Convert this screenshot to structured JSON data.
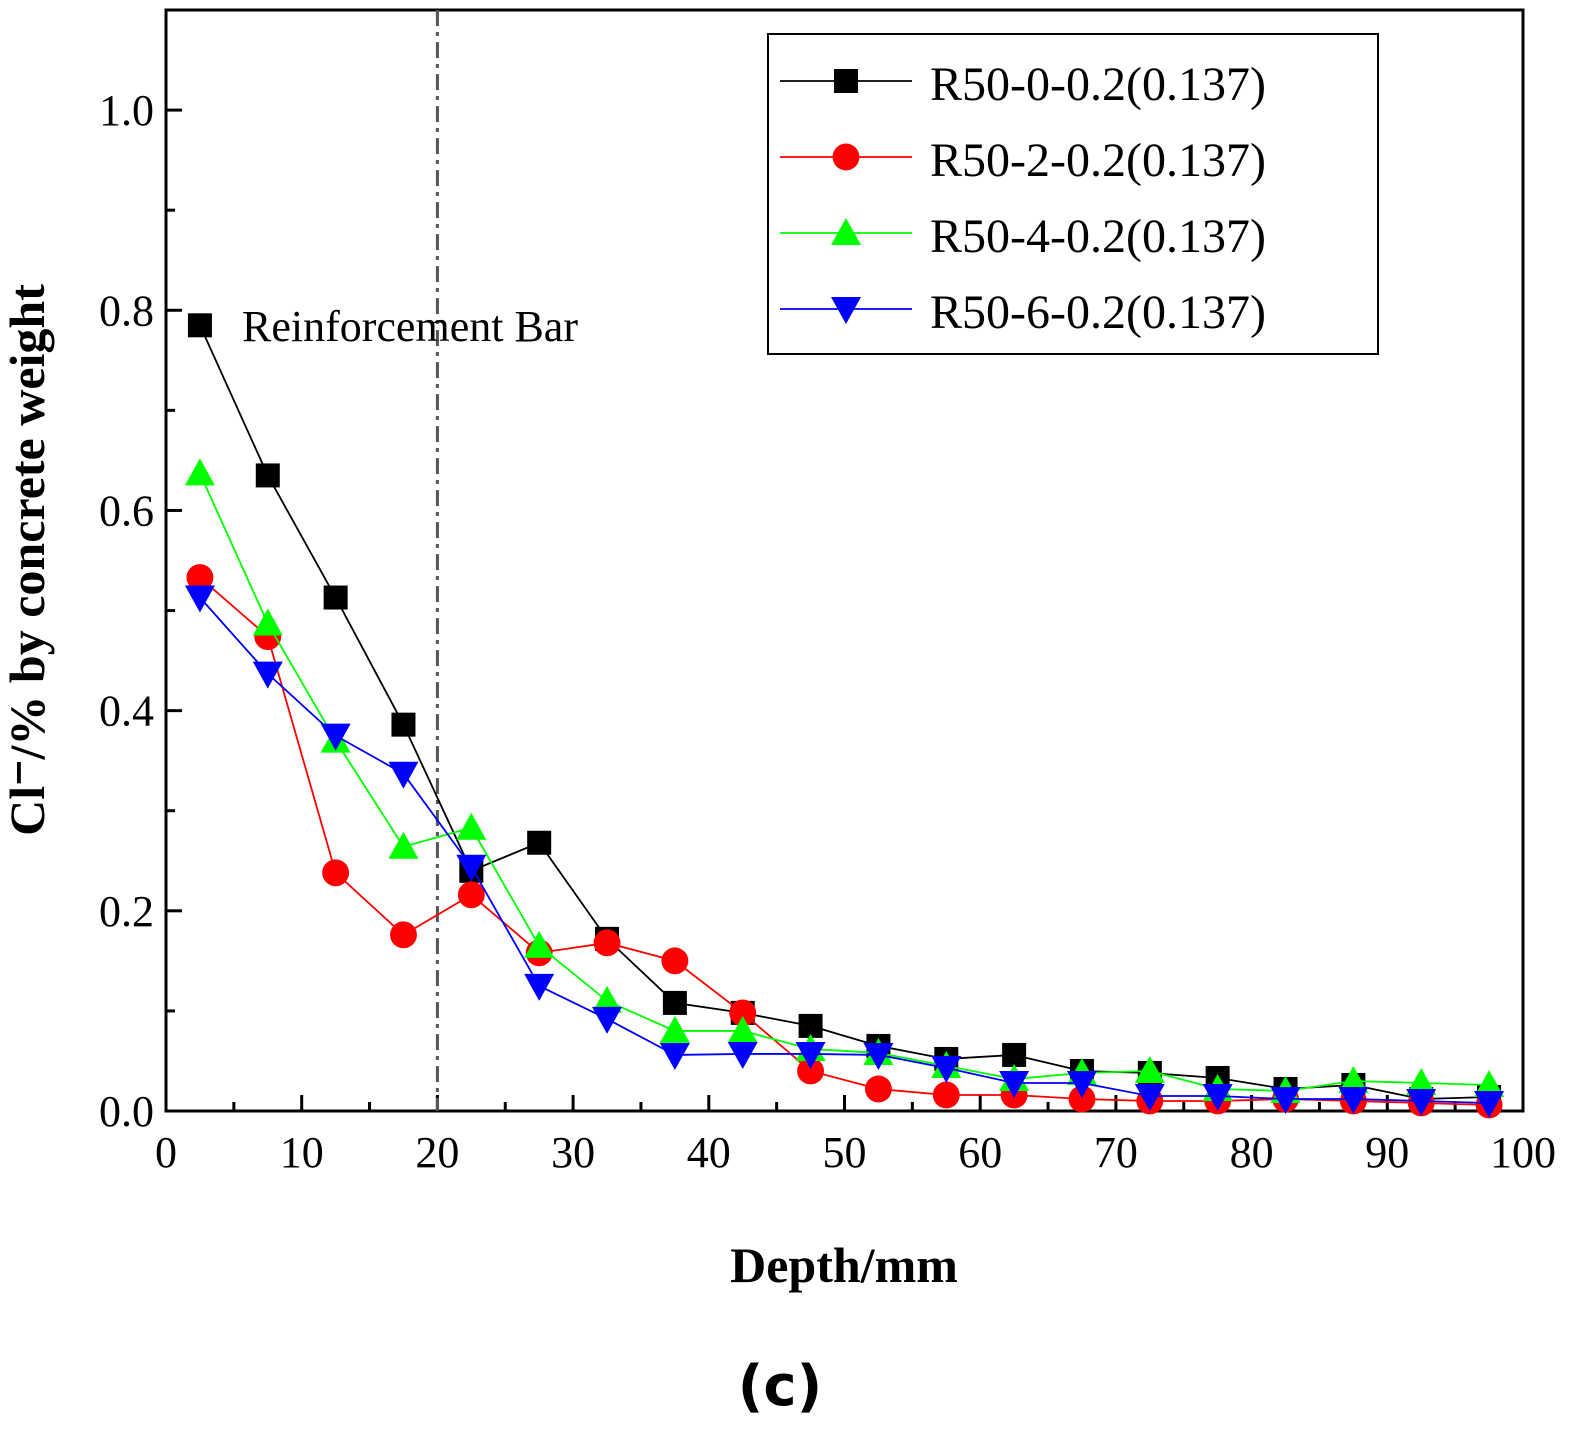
{
  "chart_data": {
    "type": "line",
    "title": "",
    "xlabel": "Depth/mm",
    "ylabel": "Cl⁻/% by concrete weight",
    "xlim": [
      0,
      100
    ],
    "ylim": [
      0,
      1.1
    ],
    "xticks": [
      0,
      10,
      20,
      30,
      40,
      50,
      60,
      70,
      80,
      90,
      100
    ],
    "yticks": [
      0.0,
      0.2,
      0.4,
      0.6,
      0.8,
      1.0
    ],
    "xtick_labels": [
      "0",
      "10",
      "20",
      "30",
      "40",
      "50",
      "60",
      "70",
      "80",
      "90",
      "100"
    ],
    "ytick_labels": [
      "0.0",
      "0.2",
      "0.4",
      "0.6",
      "0.8",
      "1.0"
    ],
    "grid": false,
    "legend_position": "top-right",
    "x": [
      2.5,
      7.5,
      12.5,
      17.5,
      22.5,
      27.5,
      32.5,
      37.5,
      42.5,
      47.5,
      52.5,
      57.5,
      62.5,
      67.5,
      72.5,
      77.5,
      82.5,
      87.5,
      92.5,
      97.5
    ],
    "series": [
      {
        "name": "R50-0-0.2(0.137)",
        "color": "#000000",
        "marker": "square",
        "values": [
          0.785,
          0.635,
          0.513,
          0.386,
          0.24,
          0.268,
          0.172,
          0.108,
          0.098,
          0.085,
          0.065,
          0.052,
          0.056,
          0.04,
          0.038,
          0.033,
          0.022,
          0.026,
          0.012,
          0.014
        ]
      },
      {
        "name": "R50-2-0.2(0.137)",
        "color": "#ff0000",
        "marker": "circle",
        "values": [
          0.533,
          0.474,
          0.238,
          0.176,
          0.216,
          0.158,
          0.168,
          0.15,
          0.098,
          0.04,
          0.022,
          0.016,
          0.016,
          0.012,
          0.01,
          0.01,
          0.012,
          0.01,
          0.008,
          0.006
        ]
      },
      {
        "name": "R50-4-0.2(0.137)",
        "color": "#00ff00",
        "marker": "triangle-up",
        "values": [
          0.637,
          0.487,
          0.37,
          0.264,
          0.283,
          0.165,
          0.11,
          0.08,
          0.08,
          0.062,
          0.058,
          0.045,
          0.032,
          0.038,
          0.04,
          0.022,
          0.02,
          0.03,
          0.028,
          0.026
        ]
      },
      {
        "name": "R50-6-0.2(0.137)",
        "color": "#0000ff",
        "marker": "triangle-down",
        "values": [
          0.513,
          0.437,
          0.375,
          0.337,
          0.244,
          0.125,
          0.092,
          0.056,
          0.057,
          0.057,
          0.056,
          0.043,
          0.028,
          0.028,
          0.015,
          0.015,
          0.012,
          0.012,
          0.01,
          0.008
        ]
      }
    ],
    "annotations": [
      {
        "text": "Reinforcement Bar",
        "x_line": 20,
        "line_style": "dash-dot"
      }
    ],
    "panel_label": "(c)"
  }
}
